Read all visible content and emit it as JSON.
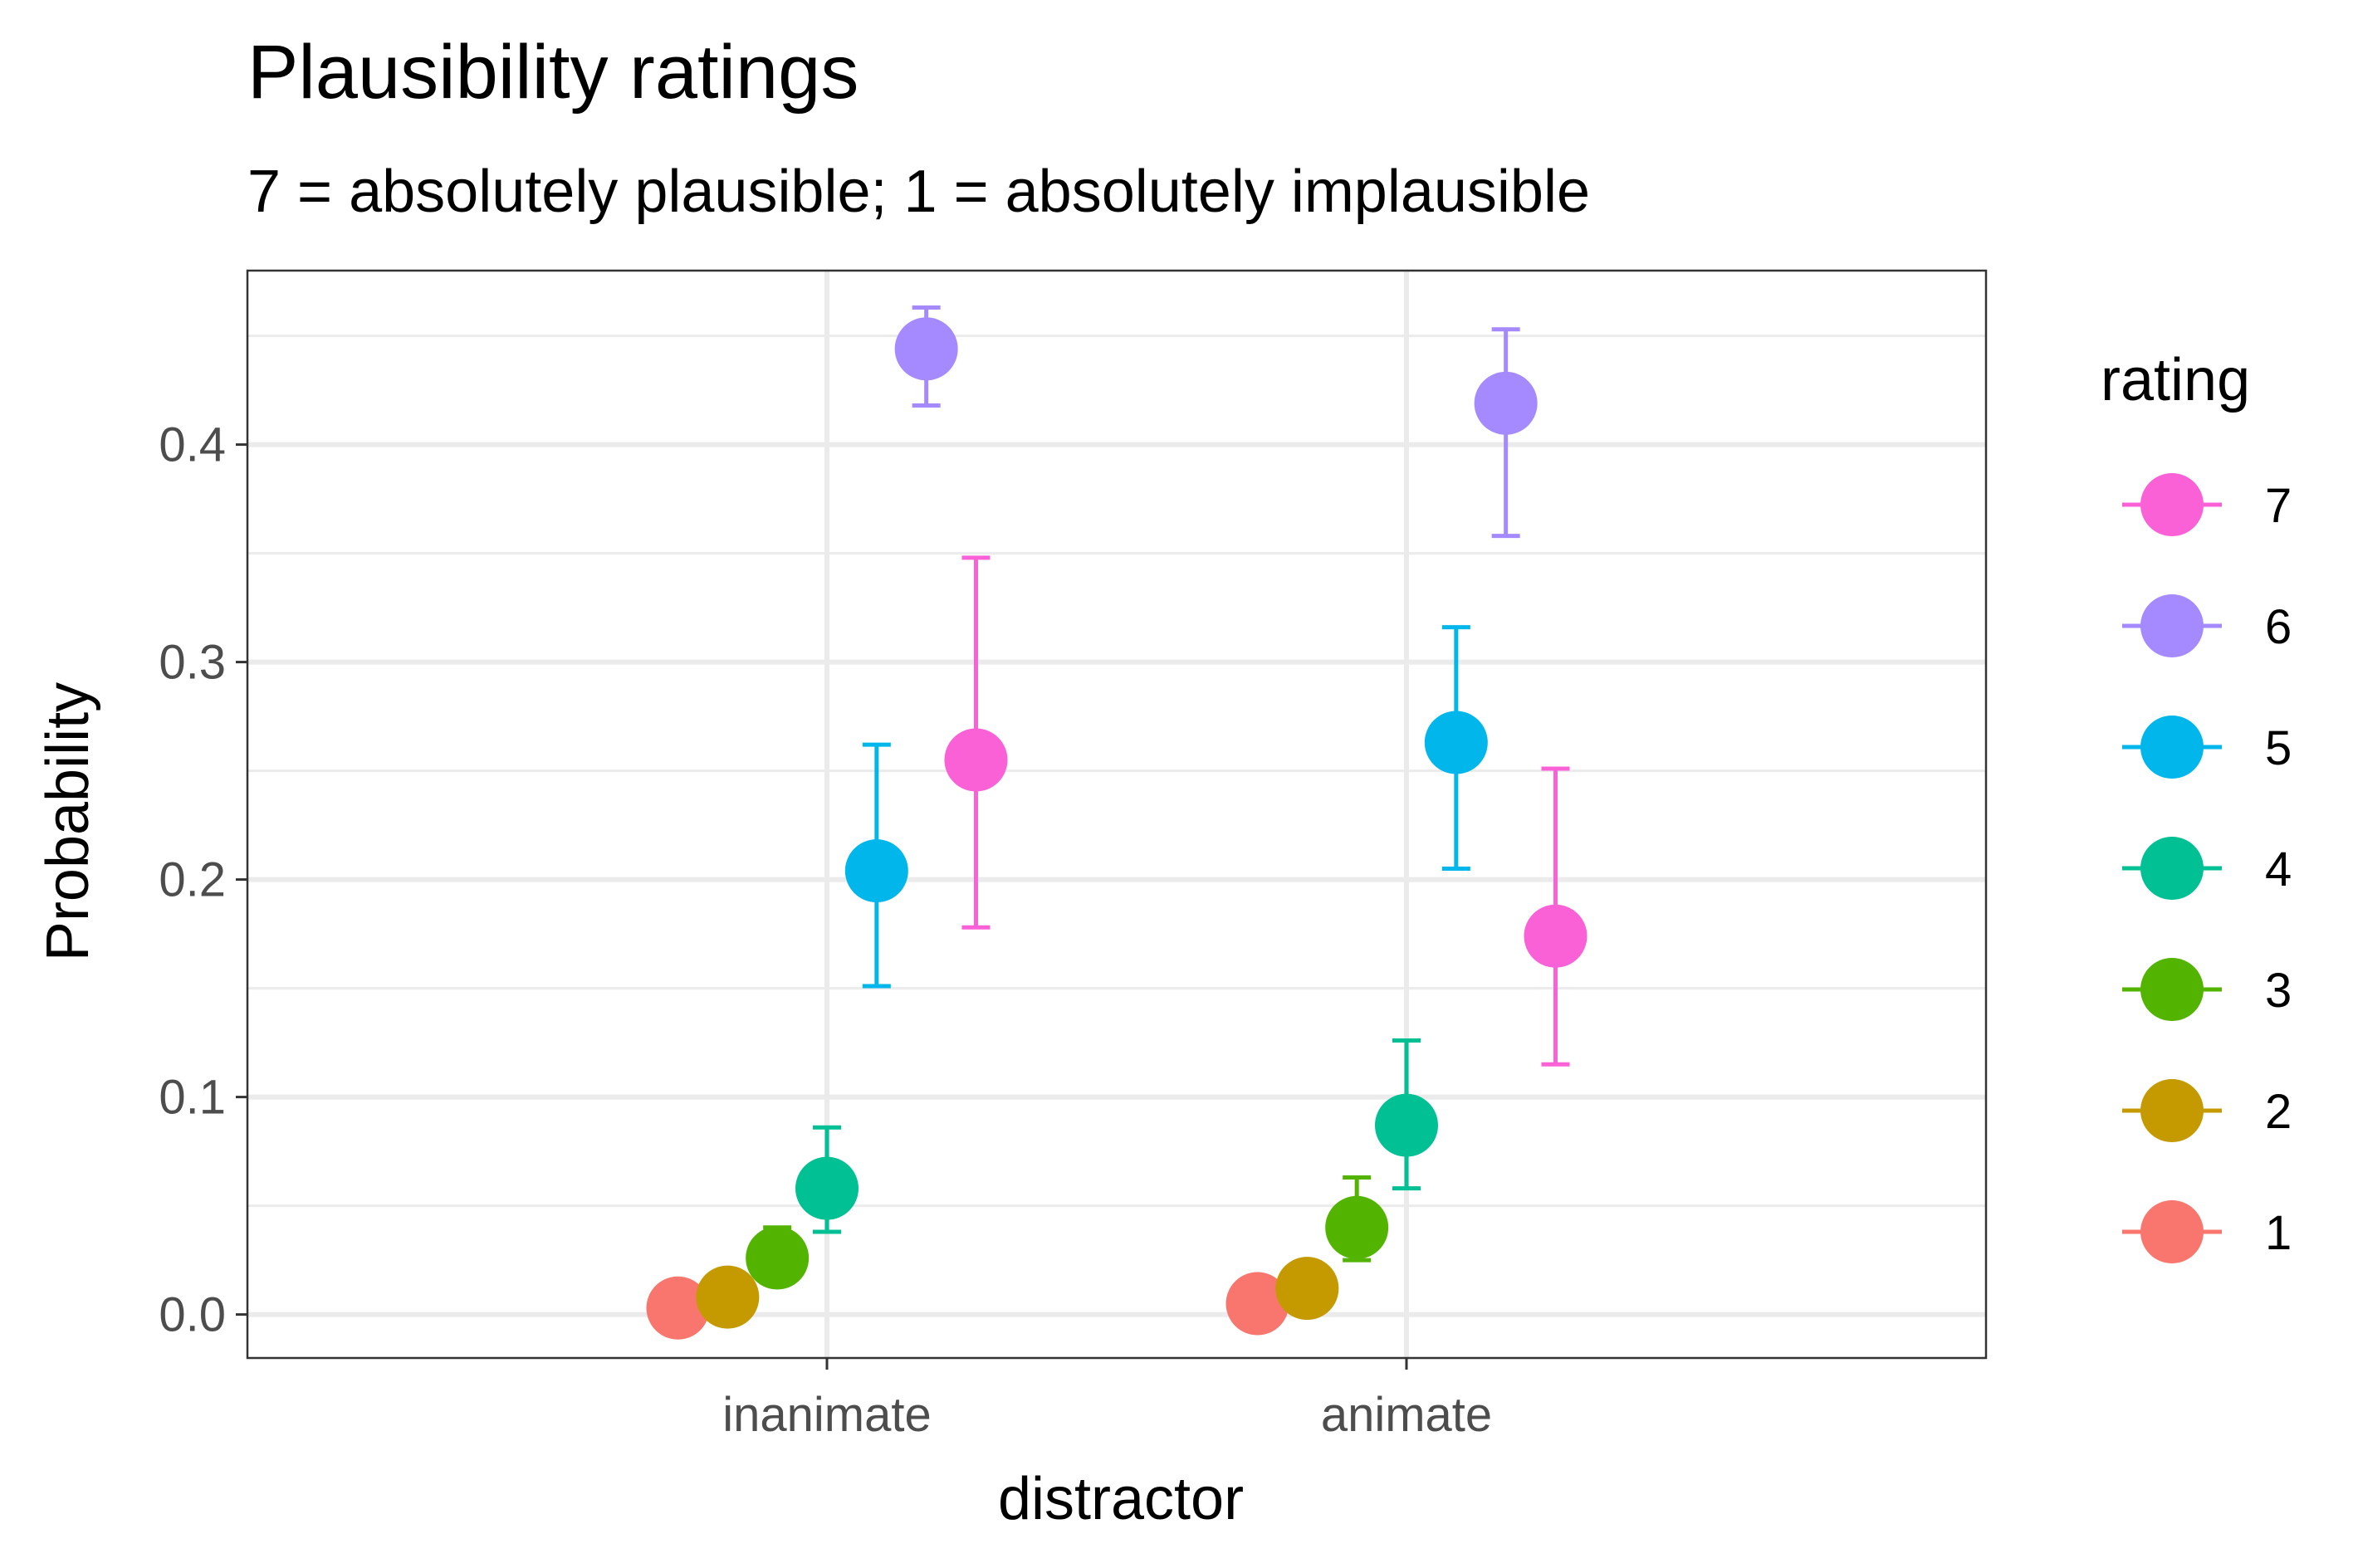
{
  "chart_data": {
    "type": "scatter",
    "title": "Plausibility ratings",
    "subtitle": "7 = absolutely plausible; 1 = absolutely implausible",
    "xlabel": "distractor",
    "ylabel": "Probability",
    "categories": [
      "inanimate",
      "animate"
    ],
    "ylim": [
      -0.02,
      0.48
    ],
    "y_ticks": [
      "0.0",
      "0.1",
      "0.2",
      "0.3",
      "0.4"
    ],
    "grid": true,
    "legend": {
      "title": "rating",
      "position": "right",
      "order": [
        "7",
        "6",
        "5",
        "4",
        "3",
        "2",
        "1"
      ]
    },
    "series": [
      {
        "name": "1",
        "color": "#F8766D",
        "values": [
          0.003,
          0.005
        ],
        "lower": [
          0.0,
          0.001
        ],
        "upper": [
          0.006,
          0.009
        ]
      },
      {
        "name": "2",
        "color": "#C49A00",
        "values": [
          0.008,
          0.012
        ],
        "lower": [
          0.003,
          0.005
        ],
        "upper": [
          0.014,
          0.02
        ]
      },
      {
        "name": "3",
        "color": "#53B400",
        "values": [
          0.026,
          0.04
        ],
        "lower": [
          0.014,
          0.025
        ],
        "upper": [
          0.04,
          0.063
        ]
      },
      {
        "name": "4",
        "color": "#00C094",
        "values": [
          0.058,
          0.087
        ],
        "lower": [
          0.038,
          0.058
        ],
        "upper": [
          0.086,
          0.126
        ]
      },
      {
        "name": "5",
        "color": "#00B6EB",
        "values": [
          0.204,
          0.263
        ],
        "lower": [
          0.151,
          0.205
        ],
        "upper": [
          0.262,
          0.316
        ]
      },
      {
        "name": "6",
        "color": "#A58AFF",
        "values": [
          0.444,
          0.419
        ],
        "lower": [
          0.418,
          0.358
        ],
        "upper": [
          0.463,
          0.453
        ]
      },
      {
        "name": "7",
        "color": "#FB61D7",
        "values": [
          0.255,
          0.174
        ],
        "lower": [
          0.178,
          0.115
        ],
        "upper": [
          0.348,
          0.251
        ]
      }
    ]
  }
}
